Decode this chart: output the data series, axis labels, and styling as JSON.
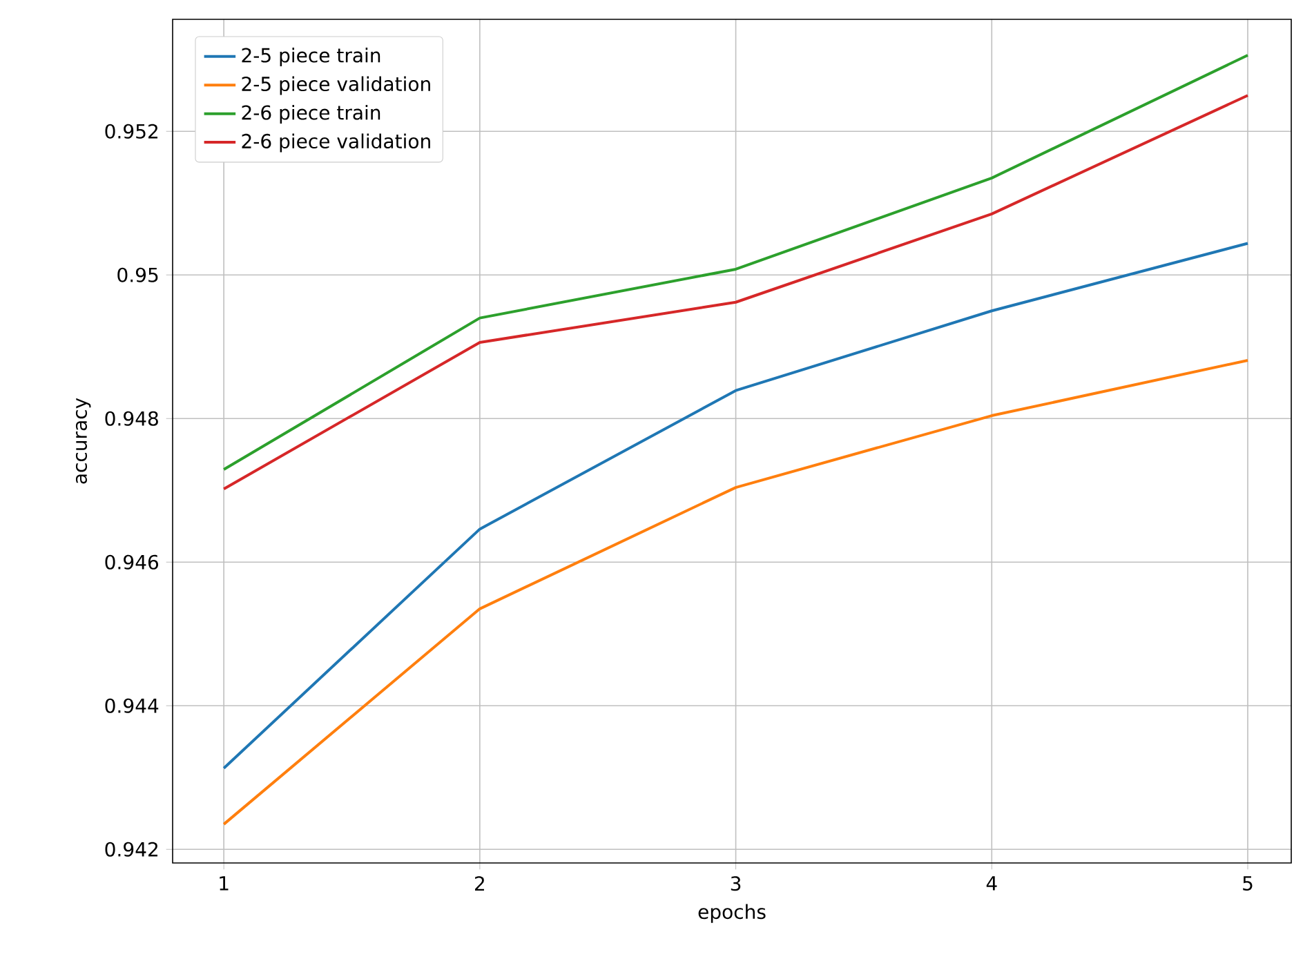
{
  "chart_data": {
    "type": "line",
    "xlabel": "epochs",
    "ylabel": "accuracy",
    "x": [
      1,
      2,
      3,
      4,
      5
    ],
    "series": [
      {
        "name": "2-5 piece train",
        "color": "#1f77b4",
        "values": [
          0.94313,
          0.94646,
          0.94839,
          0.9495,
          0.95044
        ]
      },
      {
        "name": "2-5 piece validation",
        "color": "#ff7f0e",
        "values": [
          0.94235,
          0.94535,
          0.94704,
          0.94804,
          0.94881
        ]
      },
      {
        "name": "2-6 piece train",
        "color": "#2ca02c",
        "values": [
          0.94729,
          0.9494,
          0.95008,
          0.95135,
          0.95306
        ]
      },
      {
        "name": "2-6 piece validation",
        "color": "#d62728",
        "values": [
          0.94702,
          0.94906,
          0.94962,
          0.95085,
          0.9525
        ]
      }
    ],
    "xlim": [
      0.8,
      5.17
    ],
    "ylim": [
      0.94181,
      0.95356
    ],
    "xticks": [
      1,
      2,
      3,
      4,
      5
    ],
    "yticks": [
      0.942,
      0.944,
      0.946,
      0.948,
      0.95,
      0.952
    ],
    "grid": true,
    "legend": "top left"
  }
}
